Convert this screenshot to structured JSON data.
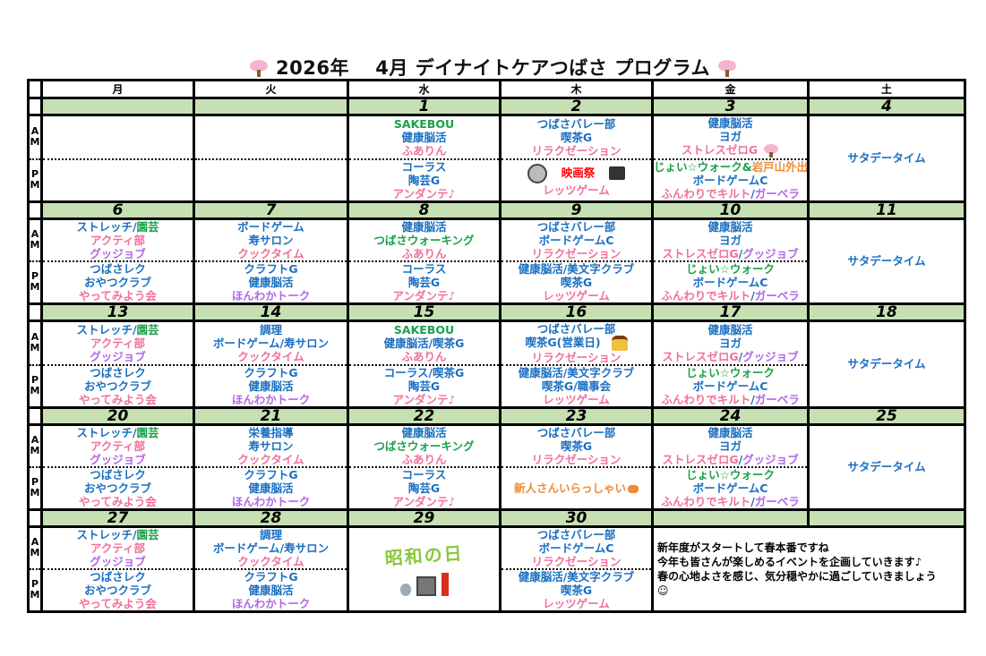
{
  "title": {
    "year": "2026年",
    "month": "4月",
    "name": "デイナイトケアつばさ プログラム",
    "icon": "sakura-icon"
  },
  "colors": {
    "b": "#1a6fc0",
    "p": "#f0709a",
    "g": "#1aa04a",
    "v": "#b366e6",
    "o": "#f08a30",
    "r": "#ff0000",
    "date_bg": "#c6e0b4"
  },
  "weekdays": [
    "月",
    "火",
    "水",
    "木",
    "金",
    "土"
  ],
  "labels": {
    "am": "A\nM",
    "pm": "P\nM"
  },
  "saturday_text": "サタデータイム",
  "weeks": [
    {
      "dates": [
        "",
        "",
        "1",
        "2",
        "3",
        "4"
      ],
      "days": [
        {
          "am": [],
          "pm": []
        },
        {
          "am": [],
          "pm": []
        },
        {
          "am": [
            [
              {
                "t": "SAKEBOU",
                "c": "g"
              }
            ],
            [
              {
                "t": "健康脳活",
                "c": "b"
              }
            ],
            [
              {
                "t": "ふありん",
                "c": "p"
              }
            ]
          ],
          "pm": [
            [
              {
                "t": "コーラス",
                "c": "b"
              }
            ],
            [
              {
                "t": "陶芸G",
                "c": "b"
              }
            ],
            [
              {
                "t": "アンダンテ♪",
                "c": "p"
              }
            ]
          ]
        },
        {
          "am": [
            [
              {
                "t": "つばさバレー部",
                "c": "b"
              }
            ],
            [
              {
                "t": "喫茶G",
                "c": "b"
              }
            ],
            [
              {
                "t": "リラクゼーション",
                "c": "p"
              }
            ]
          ],
          "pm": [
            [
              {
                "icon": "film-reel-icon"
              },
              {
                "t": "映画祭",
                "c": "r"
              },
              {
                "icon": "clapperboard-icon"
              }
            ],
            [
              {
                "t": "レッツゲーム",
                "c": "p"
              }
            ]
          ]
        },
        {
          "am": [
            [
              {
                "t": "健康脳活",
                "c": "b"
              }
            ],
            [
              {
                "t": "ヨガ",
                "c": "b"
              }
            ],
            [
              {
                "t": "ストレスゼロG",
                "c": "p"
              },
              {
                "icon": "sakura-icon"
              }
            ]
          ],
          "pm": [
            [
              {
                "t": "じょい☆ウォーク&",
                "c": "g"
              },
              {
                "t": "岩戸山外出",
                "c": "o"
              }
            ],
            [
              {
                "t": "ボードゲームC",
                "c": "b"
              }
            ],
            [
              {
                "t": "ふんわりでキルト",
                "c": "p"
              },
              {
                "t": "/",
                "c": "b"
              },
              {
                "t": "ガーベラ",
                "c": "v"
              }
            ]
          ]
        },
        {
          "saturday": true
        }
      ]
    },
    {
      "dates": [
        "6",
        "7",
        "8",
        "9",
        "10",
        "11"
      ],
      "days": [
        {
          "am": [
            [
              {
                "t": "ストレッチ/",
                "c": "b"
              },
              {
                "t": "園芸",
                "c": "g"
              }
            ],
            [
              {
                "t": "アクティ部",
                "c": "p"
              }
            ],
            [
              {
                "t": "グッジョブ",
                "c": "v"
              }
            ]
          ],
          "pm": [
            [
              {
                "t": "つばさレク",
                "c": "b"
              }
            ],
            [
              {
                "t": "おやつクラブ",
                "c": "b"
              }
            ],
            [
              {
                "t": "やってみよう会",
                "c": "p"
              }
            ]
          ]
        },
        {
          "am": [
            [
              {
                "t": "ボードゲーム",
                "c": "b"
              }
            ],
            [
              {
                "t": "寿サロン",
                "c": "b"
              }
            ],
            [
              {
                "t": "クックタイム",
                "c": "p"
              }
            ]
          ],
          "pm": [
            [
              {
                "t": "クラフトG",
                "c": "b"
              }
            ],
            [
              {
                "t": "健康脳活",
                "c": "b"
              }
            ],
            [
              {
                "t": "ほんわかトーク",
                "c": "v"
              }
            ]
          ]
        },
        {
          "am": [
            [
              {
                "t": "健康脳活",
                "c": "b"
              }
            ],
            [
              {
                "t": "つばさウォーキング",
                "c": "g"
              }
            ],
            [
              {
                "t": "ふありん",
                "c": "p"
              }
            ]
          ],
          "pm": [
            [
              {
                "t": "コーラス",
                "c": "b"
              }
            ],
            [
              {
                "t": "陶芸G",
                "c": "b"
              }
            ],
            [
              {
                "t": "アンダンテ♪",
                "c": "p"
              }
            ]
          ]
        },
        {
          "am": [
            [
              {
                "t": "つばさバレー部",
                "c": "b"
              }
            ],
            [
              {
                "t": "ボードゲームC",
                "c": "b"
              }
            ],
            [
              {
                "t": "リラクゼーション",
                "c": "p"
              }
            ]
          ],
          "pm": [
            [
              {
                "t": "健康脳活/美文字クラブ",
                "c": "b"
              }
            ],
            [
              {
                "t": "喫茶G",
                "c": "b"
              }
            ],
            [
              {
                "t": "レッツゲーム",
                "c": "p"
              }
            ]
          ]
        },
        {
          "am": [
            [
              {
                "t": "健康脳活",
                "c": "b"
              }
            ],
            [
              {
                "t": "ヨガ",
                "c": "b"
              }
            ],
            [
              {
                "t": "ストレスゼロG",
                "c": "p"
              },
              {
                "t": "/",
                "c": "b"
              },
              {
                "t": "グッジョブ",
                "c": "v"
              }
            ]
          ],
          "pm": [
            [
              {
                "t": "じょい☆ウォーク",
                "c": "g"
              }
            ],
            [
              {
                "t": "ボードゲームC",
                "c": "b"
              }
            ],
            [
              {
                "t": "ふんわりでキルト",
                "c": "p"
              },
              {
                "t": "/",
                "c": "b"
              },
              {
                "t": "ガーベラ",
                "c": "v"
              }
            ]
          ]
        },
        {
          "saturday": true
        }
      ]
    },
    {
      "dates": [
        "13",
        "14",
        "15",
        "16",
        "17",
        "18"
      ],
      "days": [
        {
          "am": [
            [
              {
                "t": "ストレッチ/",
                "c": "b"
              },
              {
                "t": "園芸",
                "c": "g"
              }
            ],
            [
              {
                "t": "アクティ部",
                "c": "p"
              }
            ],
            [
              {
                "t": "グッジョブ",
                "c": "v"
              }
            ]
          ],
          "pm": [
            [
              {
                "t": "つばさレク",
                "c": "b"
              }
            ],
            [
              {
                "t": "おやつクラブ",
                "c": "b"
              }
            ],
            [
              {
                "t": "やってみよう会",
                "c": "p"
              }
            ]
          ]
        },
        {
          "am": [
            [
              {
                "t": "調理",
                "c": "b"
              }
            ],
            [
              {
                "t": "ボードゲーム/寿サロン",
                "c": "b"
              }
            ],
            [
              {
                "t": "クックタイム",
                "c": "p"
              }
            ]
          ],
          "pm": [
            [
              {
                "t": "クラフトG",
                "c": "b"
              }
            ],
            [
              {
                "t": "健康脳活",
                "c": "b"
              }
            ],
            [
              {
                "t": "ほんわかトーク",
                "c": "v"
              }
            ]
          ]
        },
        {
          "am": [
            [
              {
                "t": "SAKEBOU",
                "c": "g"
              }
            ],
            [
              {
                "t": "健康脳活/喫茶G",
                "c": "b"
              }
            ],
            [
              {
                "t": "ふありん",
                "c": "p"
              }
            ]
          ],
          "pm": [
            [
              {
                "t": "コーラス/喫茶G",
                "c": "b"
              }
            ],
            [
              {
                "t": "陶芸G",
                "c": "b"
              }
            ],
            [
              {
                "t": "アンダンテ♪",
                "c": "p"
              }
            ]
          ]
        },
        {
          "am": [
            [
              {
                "t": "つばさバレー部",
                "c": "b"
              }
            ],
            [
              {
                "t": "喫茶G(営業日)",
                "c": "b"
              },
              {
                "icon": "pudding-icon"
              }
            ],
            [
              {
                "t": "リラクゼーション",
                "c": "p"
              }
            ]
          ],
          "pm": [
            [
              {
                "t": "健康脳活/美文字クラブ",
                "c": "b"
              }
            ],
            [
              {
                "t": "喫茶G/職事会",
                "c": "b"
              }
            ],
            [
              {
                "t": "レッツゲーム",
                "c": "p"
              }
            ]
          ]
        },
        {
          "am": [
            [
              {
                "t": "健康脳活",
                "c": "b"
              }
            ],
            [
              {
                "t": "ヨガ",
                "c": "b"
              }
            ],
            [
              {
                "t": "ストレスゼロG",
                "c": "p"
              },
              {
                "t": "/",
                "c": "b"
              },
              {
                "t": "グッジョブ",
                "c": "v"
              }
            ]
          ],
          "pm": [
            [
              {
                "t": "じょい☆ウォーク",
                "c": "g"
              }
            ],
            [
              {
                "t": "ボードゲームC",
                "c": "b"
              }
            ],
            [
              {
                "t": "ふんわりでキルト",
                "c": "p"
              },
              {
                "t": "/",
                "c": "b"
              },
              {
                "t": "ガーベラ",
                "c": "v"
              }
            ]
          ]
        },
        {
          "saturday": true
        }
      ]
    },
    {
      "dates": [
        "20",
        "21",
        "22",
        "23",
        "24",
        "25"
      ],
      "days": [
        {
          "am": [
            [
              {
                "t": "ストレッチ/",
                "c": "b"
              },
              {
                "t": "園芸",
                "c": "g"
              }
            ],
            [
              {
                "t": "アクティ部",
                "c": "p"
              }
            ],
            [
              {
                "t": "グッジョブ",
                "c": "v"
              }
            ]
          ],
          "pm": [
            [
              {
                "t": "つばさレク",
                "c": "b"
              }
            ],
            [
              {
                "t": "おやつクラブ",
                "c": "b"
              }
            ],
            [
              {
                "t": "やってみよう会",
                "c": "p"
              }
            ]
          ]
        },
        {
          "am": [
            [
              {
                "t": "栄養指導",
                "c": "b"
              }
            ],
            [
              {
                "t": "寿サロン",
                "c": "b"
              }
            ],
            [
              {
                "t": "クックタイム",
                "c": "p"
              }
            ]
          ],
          "pm": [
            [
              {
                "t": "クラフトG",
                "c": "b"
              }
            ],
            [
              {
                "t": "健康脳活",
                "c": "b"
              }
            ],
            [
              {
                "t": "ほんわかトーク",
                "c": "v"
              }
            ]
          ]
        },
        {
          "am": [
            [
              {
                "t": "健康脳活",
                "c": "b"
              }
            ],
            [
              {
                "t": "つばさウォーキング",
                "c": "g"
              }
            ],
            [
              {
                "t": "ふありん",
                "c": "p"
              }
            ]
          ],
          "pm": [
            [
              {
                "t": "コーラス",
                "c": "b"
              }
            ],
            [
              {
                "t": "陶芸G",
                "c": "b"
              }
            ],
            [
              {
                "t": "アンダンテ♪",
                "c": "p"
              }
            ]
          ]
        },
        {
          "am": [
            [
              {
                "t": "つばさバレー部",
                "c": "b"
              }
            ],
            [
              {
                "t": "喫茶G",
                "c": "b"
              }
            ],
            [
              {
                "t": "リラクゼーション",
                "c": "p"
              }
            ]
          ],
          "pm": [
            [
              {
                "t": "新人さんいらっしゃい",
                "c": "o"
              },
              {
                "icon": "raised-hands-icon"
              }
            ]
          ]
        },
        {
          "am": [
            [
              {
                "t": "健康脳活",
                "c": "b"
              }
            ],
            [
              {
                "t": "ヨガ",
                "c": "b"
              }
            ],
            [
              {
                "t": "ストレスゼロG",
                "c": "p"
              },
              {
                "t": "/",
                "c": "b"
              },
              {
                "t": "グッジョブ",
                "c": "v"
              }
            ]
          ],
          "pm": [
            [
              {
                "t": "じょい☆ウォーク",
                "c": "g"
              }
            ],
            [
              {
                "t": "ボードゲームC",
                "c": "b"
              }
            ],
            [
              {
                "t": "ふんわりでキルト",
                "c": "p"
              },
              {
                "t": "/",
                "c": "b"
              },
              {
                "t": "ガーベラ",
                "c": "v"
              }
            ]
          ]
        },
        {
          "saturday": true
        }
      ]
    },
    {
      "dates": [
        "27",
        "28",
        "29",
        "30",
        "",
        ""
      ],
      "days": [
        {
          "am": [
            [
              {
                "t": "ストレッチ/",
                "c": "b"
              },
              {
                "t": "園芸",
                "c": "g"
              }
            ],
            [
              {
                "t": "アクティ部",
                "c": "p"
              }
            ],
            [
              {
                "t": "グッジョブ",
                "c": "v"
              }
            ]
          ],
          "pm": [
            [
              {
                "t": "つばさレク",
                "c": "b"
              }
            ],
            [
              {
                "t": "おやつクラブ",
                "c": "b"
              }
            ],
            [
              {
                "t": "やってみよう会",
                "c": "p"
              }
            ]
          ]
        },
        {
          "am": [
            [
              {
                "t": "調理",
                "c": "b"
              }
            ],
            [
              {
                "t": "ボードゲーム/寿サロン",
                "c": "b"
              }
            ],
            [
              {
                "t": "クックタイム",
                "c": "p"
              }
            ]
          ],
          "pm": [
            [
              {
                "t": "クラフトG",
                "c": "b"
              }
            ],
            [
              {
                "t": "健康脳活",
                "c": "b"
              }
            ],
            [
              {
                "t": "ほんわかトーク",
                "c": "v"
              }
            ]
          ]
        },
        {
          "holiday_image": "昭和の日"
        },
        {
          "am": [
            [
              {
                "t": "つばさバレー部",
                "c": "b"
              }
            ],
            [
              {
                "t": "ボードゲームC",
                "c": "b"
              }
            ],
            [
              {
                "t": "リラクゼーション",
                "c": "p"
              }
            ]
          ],
          "pm": [
            [
              {
                "t": "健康脳活/美文字クラブ",
                "c": "b"
              }
            ],
            [
              {
                "t": "喫茶G",
                "c": "b"
              }
            ],
            [
              {
                "t": "レッツゲーム",
                "c": "p"
              }
            ]
          ]
        },
        {
          "message": "新年度がスタートして春本番ですね\n今年も皆さんが楽しめるイベントを企画していきます♪\n春の心地よさを感じ、気分穏やかに過ごしていきましょう\n☺"
        }
      ]
    }
  ]
}
